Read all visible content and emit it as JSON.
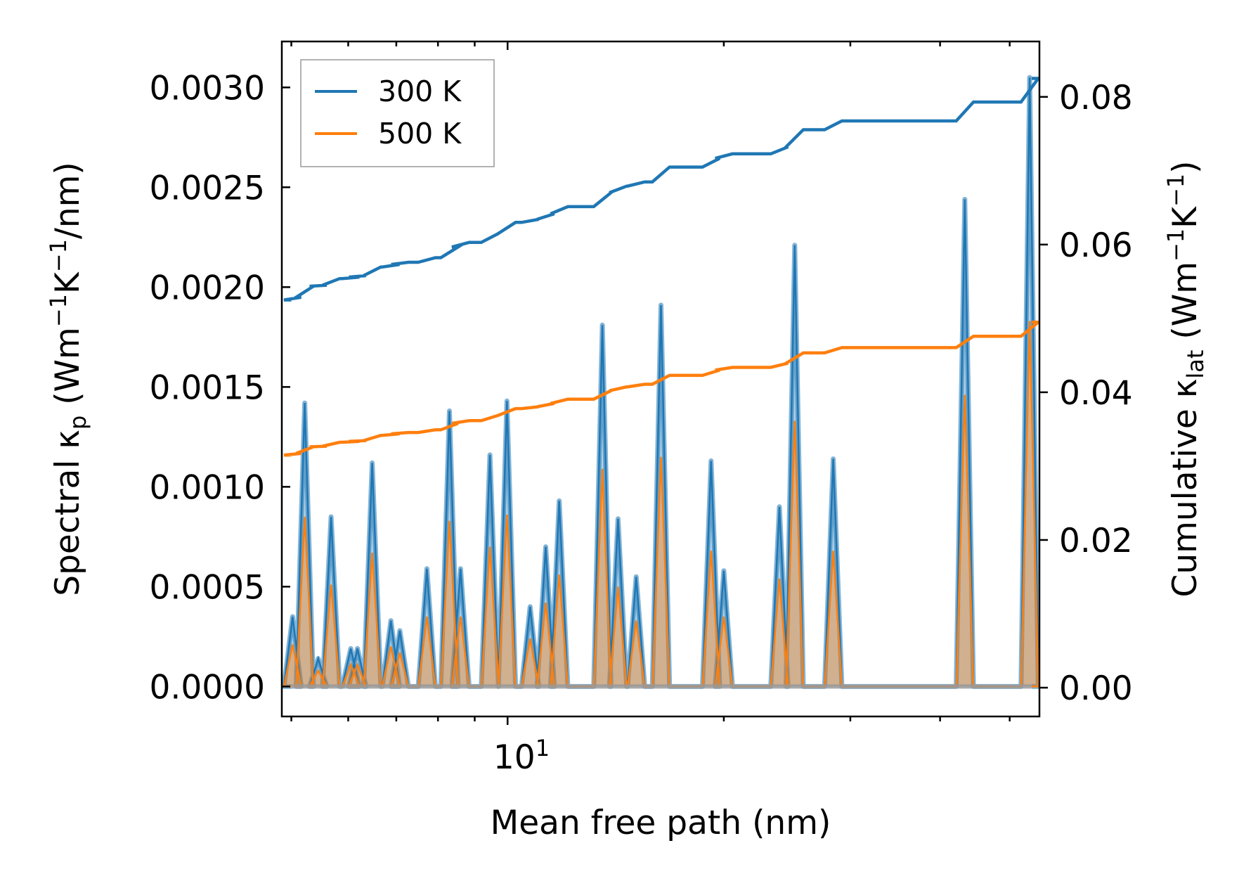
{
  "chart_data": {
    "type": "line",
    "xlabel": "Mean free path (nm)",
    "xscale": "log",
    "xlim": [
      4.85,
      55.0
    ],
    "x_ticks": [
      {
        "value": 10,
        "label": "10",
        "exp": "1"
      }
    ],
    "ylabel_left": {
      "main": "Spectral κ",
      "sub": "p",
      "units": [
        "(Wm",
        "−1",
        "K",
        "−1",
        "/nm)"
      ]
    },
    "ylabel_right": {
      "main": "Cumulative κ",
      "sub": "lat",
      "units": [
        "(Wm",
        "−1",
        "K",
        "−1",
        ")"
      ]
    },
    "ylim_left": [
      -0.00015,
      0.00323
    ],
    "ylim_right": [
      -0.0039,
      0.0875
    ],
    "yticks_left": [
      {
        "value": 0.0,
        "label": "0.0000"
      },
      {
        "value": 0.0005,
        "label": "0.0005"
      },
      {
        "value": 0.001,
        "label": "0.0010"
      },
      {
        "value": 0.0015,
        "label": "0.0015"
      },
      {
        "value": 0.002,
        "label": "0.0020"
      },
      {
        "value": 0.0025,
        "label": "0.0025"
      },
      {
        "value": 0.003,
        "label": "0.0030"
      }
    ],
    "yticks_right": [
      {
        "value": 0.0,
        "label": "0.00"
      },
      {
        "value": 0.02,
        "label": "0.02"
      },
      {
        "value": 0.04,
        "label": "0.04"
      },
      {
        "value": 0.06,
        "label": "0.06"
      },
      {
        "value": 0.08,
        "label": "0.08"
      }
    ],
    "legend": {
      "position": "upper-left",
      "entries": [
        {
          "label": "300 K",
          "color": "#1f77b4"
        },
        {
          "label": "500 K",
          "color": "#ff7f0e"
        }
      ]
    },
    "spectral_peaks": [
      {
        "x": 5.02,
        "k300": 0.00035,
        "k500": 0.00021
      },
      {
        "x": 5.22,
        "k300": 0.00142,
        "k500": 0.00085
      },
      {
        "x": 5.45,
        "k300": 0.00014,
        "k500": 8e-05
      },
      {
        "x": 5.68,
        "k300": 0.00085,
        "k500": 0.00051
      },
      {
        "x": 6.05,
        "k300": 0.00019,
        "k500": 0.00011
      },
      {
        "x": 6.18,
        "k300": 0.00019,
        "k500": 0.00011
      },
      {
        "x": 6.48,
        "k300": 0.00112,
        "k500": 0.00067
      },
      {
        "x": 6.88,
        "k300": 0.00033,
        "k500": 0.0002
      },
      {
        "x": 7.08,
        "k300": 0.00028,
        "k500": 0.00017
      },
      {
        "x": 7.72,
        "k300": 0.00059,
        "k500": 0.00035
      },
      {
        "x": 8.3,
        "k300": 0.00138,
        "k500": 0.00083
      },
      {
        "x": 8.6,
        "k300": 0.00059,
        "k500": 0.00035
      },
      {
        "x": 9.45,
        "k300": 0.00116,
        "k500": 0.0007
      },
      {
        "x": 9.98,
        "k300": 0.00143,
        "k500": 0.00086
      },
      {
        "x": 10.75,
        "k300": 0.0004,
        "k500": 0.00024
      },
      {
        "x": 11.3,
        "k300": 0.0007,
        "k500": 0.00042
      },
      {
        "x": 11.8,
        "k300": 0.00093,
        "k500": 0.00056
      },
      {
        "x": 13.55,
        "k300": 0.00181,
        "k500": 0.00109
      },
      {
        "x": 14.25,
        "k300": 0.00084,
        "k500": 0.0005
      },
      {
        "x": 15.1,
        "k300": 0.00055,
        "k500": 0.00033
      },
      {
        "x": 16.35,
        "k300": 0.00191,
        "k500": 0.00115
      },
      {
        "x": 19.2,
        "k300": 0.00113,
        "k500": 0.00068
      },
      {
        "x": 20.0,
        "k300": 0.00058,
        "k500": 0.00035
      },
      {
        "x": 23.9,
        "k300": 0.0009,
        "k500": 0.00054
      },
      {
        "x": 25.1,
        "k300": 0.00221,
        "k500": 0.00133
      },
      {
        "x": 28.4,
        "k300": 0.00114,
        "k500": 0.00068
      },
      {
        "x": 43.3,
        "k300": 0.00244,
        "k500": 0.00146
      },
      {
        "x": 53.3,
        "k300": 0.00305,
        "k500": 0.00183
      }
    ],
    "cumulative_start": {
      "x": 5.0,
      "k300": 0.0525,
      "k500": 0.0315
    }
  }
}
